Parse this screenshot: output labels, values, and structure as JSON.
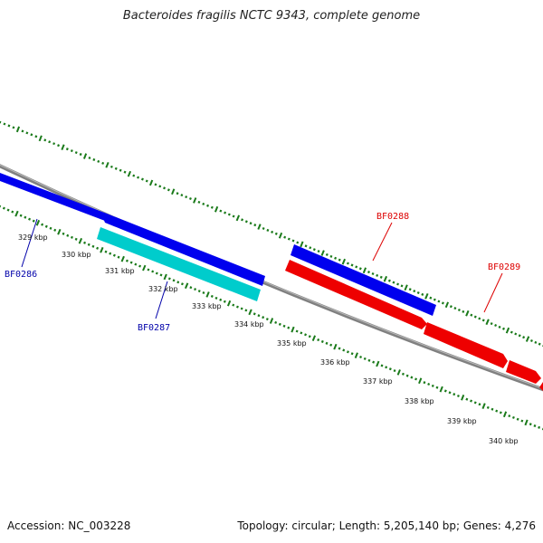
{
  "title": "Bacteroides fragilis NCTC 9343, complete genome",
  "footer": {
    "accession": "Accession: NC_003228",
    "stats": "Topology: circular; Length: 5,205,140 bp; Genes: 4,276"
  },
  "colors": {
    "backbone": "#808080",
    "ticks": "#1a7a1a",
    "forward_cds": "#0000ee",
    "forward_cds_alt": "#00cccc",
    "reverse_cds": "#ee0000",
    "forward_label": "#0000aa",
    "reverse_label": "#dd0000"
  },
  "scale_labels": [
    "329 kbp",
    "330 kbp",
    "331 kbp",
    "332 kbp",
    "333 kbp",
    "334 kbp",
    "335 kbp",
    "336 kbp",
    "337 kbp",
    "338 kbp",
    "339 kbp",
    "340 kbp"
  ],
  "gene_labels": {
    "bf0286": "BF0286",
    "bf0287": "BF0287",
    "bf0288": "BF0288",
    "bf0289": "BF0289"
  }
}
